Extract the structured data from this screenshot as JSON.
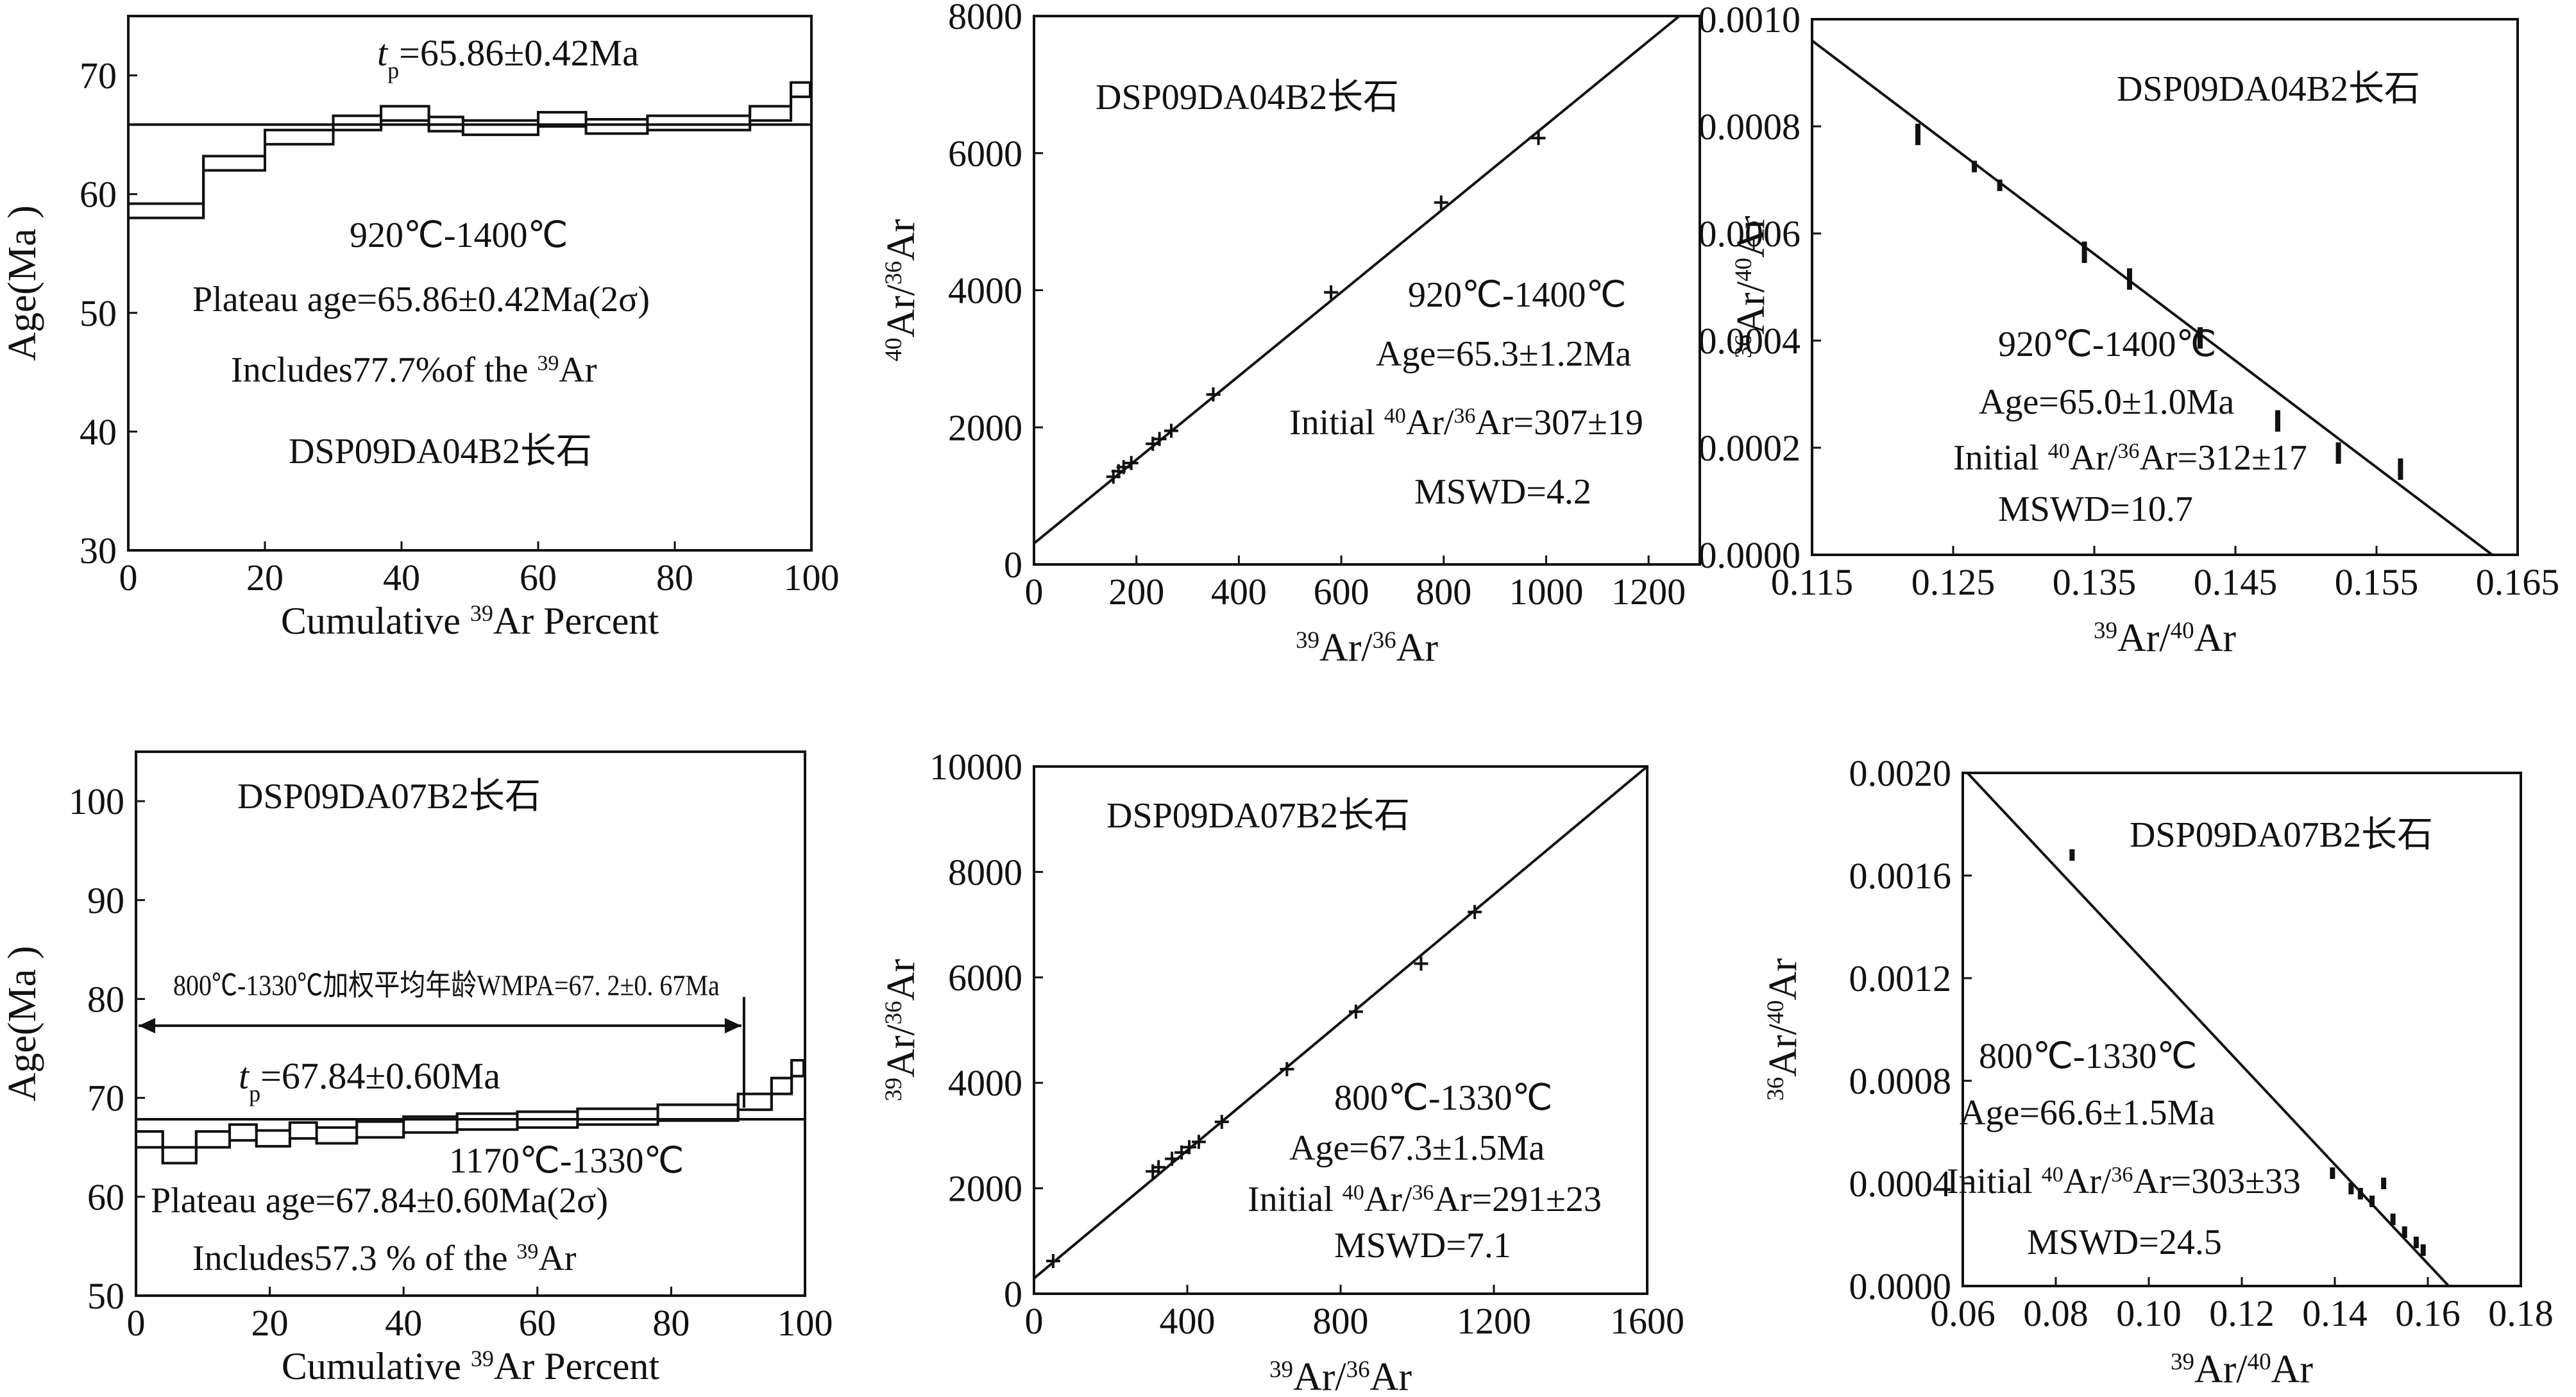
{
  "colors": {
    "ink": "#111111",
    "background": "#ffffff"
  },
  "chart_data": [
    {
      "id": "p1",
      "type": "step",
      "xlim": [
        0,
        100
      ],
      "ylim": [
        30,
        75
      ],
      "xticks": [
        0,
        20,
        40,
        60,
        80,
        100
      ],
      "yticks": [
        30,
        40,
        50,
        60,
        70
      ],
      "ylabel": "Age(Ma )",
      "xlabel": [
        "Cumulative ",
        "39",
        "Ar Percent"
      ],
      "plateau_age": 65.86,
      "plateau_label": [
        "t",
        "p",
        "=65.86±0.42Ma"
      ],
      "texts": [
        "920℃-1400℃",
        "Plateau age=65.86±0.42Ma(2σ)",
        [
          "Includes77.7%of the ",
          "39",
          "Ar"
        ],
        "DSP09DA04B2长石"
      ],
      "steps": [
        {
          "x0": 0,
          "x1": 11,
          "y": 58.6
        },
        {
          "x0": 11,
          "x1": 20,
          "y": 62.6
        },
        {
          "x0": 20,
          "x1": 30,
          "y": 64.8
        },
        {
          "x0": 30,
          "x1": 37,
          "y": 66.0
        },
        {
          "x0": 37,
          "x1": 44,
          "y": 66.8
        },
        {
          "x0": 44,
          "x1": 49,
          "y": 65.9
        },
        {
          "x0": 49,
          "x1": 60,
          "y": 65.6
        },
        {
          "x0": 60,
          "x1": 67,
          "y": 66.3
        },
        {
          "x0": 67,
          "x1": 76,
          "y": 65.7
        },
        {
          "x0": 76,
          "x1": 91,
          "y": 66.0
        },
        {
          "x0": 91,
          "x1": 97,
          "y": 66.8
        },
        {
          "x0": 97,
          "x1": 100,
          "y": 68.8
        }
      ],
      "half_width": 0.6
    },
    {
      "id": "p2",
      "type": "scatter",
      "xlim": [
        0,
        1300
      ],
      "ylim": [
        0,
        8000
      ],
      "xticks": [
        0,
        200,
        400,
        600,
        800,
        1000,
        1200
      ],
      "yticks": [
        0,
        2000,
        4000,
        6000,
        8000
      ],
      "xlabel": [
        "39",
        "Ar/",
        "36",
        "Ar"
      ],
      "ylabel": [
        "40",
        "Ar/",
        "36",
        "Ar"
      ],
      "texts": [
        "DSP09DA04B2长石",
        "920℃-1400℃",
        "Age=65.3±1.2Ma",
        [
          "Initial ",
          "40",
          "Ar/",
          "36",
          "Ar=307±19"
        ],
        "MSWD=4.2"
      ],
      "line": {
        "x": [
          0,
          1260
        ],
        "y": [
          307,
          8000
        ]
      },
      "points": [
        {
          "x": 155,
          "y": 1280
        },
        {
          "x": 165,
          "y": 1360
        },
        {
          "x": 175,
          "y": 1420
        },
        {
          "x": 190,
          "y": 1480
        },
        {
          "x": 232,
          "y": 1760
        },
        {
          "x": 245,
          "y": 1830
        },
        {
          "x": 268,
          "y": 1950
        },
        {
          "x": 350,
          "y": 2480
        },
        {
          "x": 580,
          "y": 3970
        },
        {
          "x": 795,
          "y": 5280
        },
        {
          "x": 985,
          "y": 6220
        }
      ]
    },
    {
      "id": "p3",
      "type": "scatter",
      "xlim": [
        0.115,
        0.165
      ],
      "ylim": [
        0,
        0.001
      ],
      "xticks": [
        0.115,
        0.125,
        0.135,
        0.145,
        0.155,
        0.165
      ],
      "xticklabels": [
        "0.115",
        "0.125",
        "0.135",
        "0.145",
        "0.155",
        "0.165"
      ],
      "yticks": [
        0,
        0.0002,
        0.0004,
        0.0006,
        0.0008,
        0.001
      ],
      "yticklabels": [
        "0.0000",
        "0.0002",
        "0.0004",
        "0.0006",
        "0.0008",
        "0.0010"
      ],
      "xlabel": [
        "39",
        "Ar/",
        "40",
        "Ar"
      ],
      "ylabel": [
        "36",
        "Ar/",
        "40",
        "Ar"
      ],
      "texts": [
        "DSP09DA04B2长石",
        "920℃-1400℃",
        "Age=65.0±1.0Ma",
        [
          "Initial ",
          "40",
          "Ar/",
          "36",
          "Ar=312±17"
        ],
        "MSWD=10.7"
      ],
      "line": {
        "x": [
          0.115,
          0.1632
        ],
        "y": [
          0.00096,
          0
        ]
      },
      "points": [
        {
          "x": 0.1225,
          "y": 0.000785,
          "e": 2e-05
        },
        {
          "x": 0.1265,
          "y": 0.000725,
          "e": 1e-05
        },
        {
          "x": 0.1283,
          "y": 0.00069,
          "e": 1e-05
        },
        {
          "x": 0.1343,
          "y": 0.000565,
          "e": 2e-05
        },
        {
          "x": 0.1375,
          "y": 0.000515,
          "e": 2e-05
        },
        {
          "x": 0.1425,
          "y": 0.000405,
          "e": 2e-05
        },
        {
          "x": 0.148,
          "y": 0.00025,
          "e": 2e-05
        },
        {
          "x": 0.1523,
          "y": 0.00019,
          "e": 2e-05
        },
        {
          "x": 0.1567,
          "y": 0.00016,
          "e": 2e-05
        }
      ]
    },
    {
      "id": "p4",
      "type": "step",
      "xlim": [
        0,
        100
      ],
      "ylim": [
        50,
        105
      ],
      "xticks": [
        0,
        20,
        40,
        60,
        80,
        100
      ],
      "yticks": [
        50,
        60,
        70,
        80,
        90,
        100
      ],
      "ylabel": "Age(Ma )",
      "xlabel": [
        "Cumulative ",
        "39",
        "Ar Percent"
      ],
      "plateau_age": 67.84,
      "plateau_label": [
        "t",
        "p",
        "=67.84±0.60Ma"
      ],
      "wmpa_label": "800℃-1330℃加权平均年龄WMPA=67. 2±0. 67Ma",
      "wmpa_arrow": {
        "x0": 0,
        "x1": 90.5,
        "y": 77.3
      },
      "texts": [
        "DSP09DA07B2长石",
        "1170℃-1330℃",
        "Plateau age=67.84±0.60Ma(2σ)",
        [
          "Includes57.3 % of the ",
          "39",
          "Ar"
        ]
      ],
      "steps": [
        {
          "x0": 0,
          "x1": 4,
          "y": 65.8
        },
        {
          "x0": 4,
          "x1": 9,
          "y": 64.2
        },
        {
          "x0": 9,
          "x1": 14,
          "y": 65.8
        },
        {
          "x0": 14,
          "x1": 18,
          "y": 66.5
        },
        {
          "x0": 18,
          "x1": 23,
          "y": 65.9
        },
        {
          "x0": 23,
          "x1": 27,
          "y": 66.7
        },
        {
          "x0": 27,
          "x1": 33,
          "y": 66.2
        },
        {
          "x0": 33,
          "x1": 40,
          "y": 66.8
        },
        {
          "x0": 40,
          "x1": 48,
          "y": 67.3
        },
        {
          "x0": 48,
          "x1": 57,
          "y": 67.6
        },
        {
          "x0": 57,
          "x1": 66,
          "y": 67.8
        },
        {
          "x0": 66,
          "x1": 78,
          "y": 68.1
        },
        {
          "x0": 78,
          "x1": 90,
          "y": 68.5
        },
        {
          "x0": 90,
          "x1": 95,
          "y": 69.6
        },
        {
          "x0": 95,
          "x1": 98,
          "y": 71.2
        },
        {
          "x0": 98,
          "x1": 100,
          "y": 73.0
        }
      ],
      "half_width": 0.8
    },
    {
      "id": "p5",
      "type": "scatter",
      "xlim": [
        0,
        1600
      ],
      "ylim": [
        0,
        10000
      ],
      "xticks": [
        0,
        400,
        800,
        1200,
        1600
      ],
      "yticks": [
        0,
        2000,
        4000,
        6000,
        8000,
        10000
      ],
      "xlabel": [
        "39",
        "Ar/",
        "36",
        "Ar"
      ],
      "ylabel": [
        "39",
        "Ar/",
        "36",
        "Ar"
      ],
      "texts": [
        "DSP09DA07B2长石",
        "800℃-1330℃",
        "Age=67.3±1.5Ma",
        [
          "Initial ",
          "40",
          "Ar/",
          "36",
          "Ar=291±23"
        ],
        "MSWD=7.1"
      ],
      "line": {
        "x": [
          0,
          1600
        ],
        "y": [
          291,
          10000
        ]
      },
      "points": [
        {
          "x": 50,
          "y": 620
        },
        {
          "x": 310,
          "y": 2320
        },
        {
          "x": 325,
          "y": 2400
        },
        {
          "x": 360,
          "y": 2560
        },
        {
          "x": 385,
          "y": 2680
        },
        {
          "x": 405,
          "y": 2780
        },
        {
          "x": 430,
          "y": 2880
        },
        {
          "x": 490,
          "y": 3260
        },
        {
          "x": 660,
          "y": 4260
        },
        {
          "x": 840,
          "y": 5350
        },
        {
          "x": 1010,
          "y": 6260
        },
        {
          "x": 1150,
          "y": 7240
        }
      ]
    },
    {
      "id": "p6",
      "type": "scatter",
      "xlim": [
        0.06,
        0.18
      ],
      "ylim": [
        0,
        0.002
      ],
      "xticks": [
        0.06,
        0.08,
        0.1,
        0.12,
        0.14,
        0.16,
        0.18
      ],
      "xticklabels": [
        "0.06",
        "0.08",
        "0.10",
        "0.12",
        "0.14",
        "0.16",
        "0.18"
      ],
      "yticks": [
        0,
        0.0004,
        0.0008,
        0.0012,
        0.0016,
        0.002
      ],
      "yticklabels": [
        "0.0000",
        "0.0004",
        "0.0008",
        "0.0012",
        "0.0016",
        "0.0020"
      ],
      "xlabel": [
        "39",
        "Ar/",
        "40",
        "Ar"
      ],
      "ylabel": [
        "36",
        "Ar/",
        "40",
        "Ar"
      ],
      "texts": [
        "DSP09DA07B2长石",
        "800℃-1330℃",
        "Age=66.6±1.5Ma",
        [
          "Initial ",
          "40",
          "Ar/",
          "36",
          "Ar=303±33"
        ],
        "MSWD=24.5"
      ],
      "line": {
        "x": [
          0.061,
          0.1645
        ],
        "y": [
          0.002,
          0
        ]
      },
      "points": [
        {
          "x": 0.0835,
          "y": 0.00168,
          "e": 1e-05
        },
        {
          "x": 0.1395,
          "y": 0.00044,
          "e": 1e-05
        },
        {
          "x": 0.1435,
          "y": 0.00038,
          "e": 1e-05
        },
        {
          "x": 0.1455,
          "y": 0.00036,
          "e": 1e-05
        },
        {
          "x": 0.148,
          "y": 0.00033,
          "e": 1e-05
        },
        {
          "x": 0.1505,
          "y": 0.0004,
          "e": 2e-05
        },
        {
          "x": 0.1525,
          "y": 0.00026,
          "e": 2e-05
        },
        {
          "x": 0.155,
          "y": 0.00021,
          "e": 2e-05
        },
        {
          "x": 0.1575,
          "y": 0.00017,
          "e": 2e-05
        },
        {
          "x": 0.159,
          "y": 0.00014,
          "e": 2e-05
        }
      ]
    }
  ]
}
